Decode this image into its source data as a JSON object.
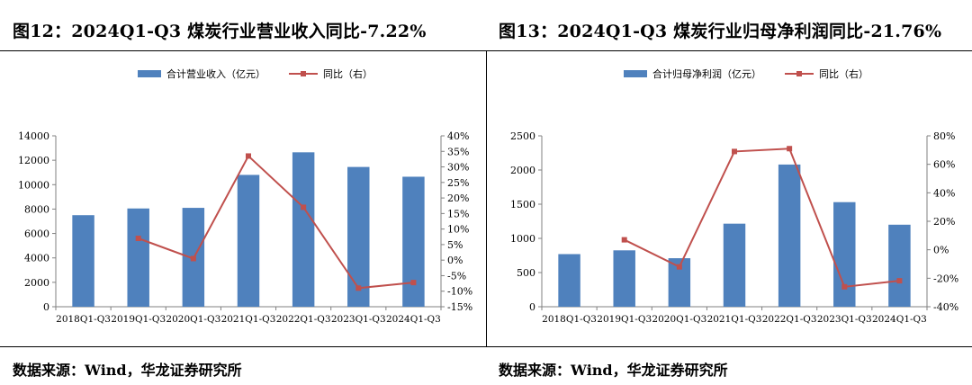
{
  "source_label": "数据来源：Wind，华龙证券研究所",
  "colors": {
    "bar": "#4f81bd",
    "line": "#c0504d",
    "axis": "#808080"
  },
  "chart_data": [
    {
      "type": "bar",
      "title": "图12：2024Q1-Q3 煤炭行业营业收入同比-7.22%",
      "categories": [
        "2018Q1-Q3",
        "2019Q1-Q3",
        "2020Q1-Q3",
        "2021Q1-Q3",
        "2022Q1-Q3",
        "2023Q1-Q3",
        "2024Q1-Q3"
      ],
      "series": [
        {
          "name": "合计营业收入（亿元）",
          "type": "bar",
          "axis": "left",
          "values": [
            7500,
            8050,
            8100,
            10800,
            12650,
            11450,
            10650
          ]
        },
        {
          "name": "同比（右）",
          "type": "line",
          "axis": "right",
          "values": [
            null,
            7,
            0.5,
            33.5,
            17,
            -9,
            -7.22
          ]
        }
      ],
      "ylim": [
        0,
        14000
      ],
      "yticks": [
        0,
        2000,
        4000,
        6000,
        8000,
        10000,
        12000,
        14000
      ],
      "ylim_right": [
        -15,
        40
      ],
      "yticks_right": [
        "-15%",
        "-10%",
        "-5%",
        "0%",
        "5%",
        "10%",
        "15%",
        "20%",
        "25%",
        "30%",
        "35%",
        "40%"
      ],
      "legend": "top-center",
      "grid": false
    },
    {
      "type": "bar",
      "title": "图13：2024Q1-Q3 煤炭行业归母净利润同比-21.76%",
      "categories": [
        "2018Q1-Q3",
        "2019Q1-Q3",
        "2020Q1-Q3",
        "2021Q1-Q3",
        "2022Q1-Q3",
        "2023Q1-Q3",
        "2024Q1-Q3"
      ],
      "series": [
        {
          "name": "合计归母净利润（亿元）",
          "type": "bar",
          "axis": "left",
          "values": [
            770,
            825,
            710,
            1215,
            2080,
            1530,
            1200
          ]
        },
        {
          "name": "同比（右）",
          "type": "line",
          "axis": "right",
          "values": [
            null,
            7,
            -12,
            69,
            71,
            -26,
            -21.76
          ]
        }
      ],
      "ylim": [
        0,
        2500
      ],
      "yticks": [
        0,
        500,
        1000,
        1500,
        2000,
        2500
      ],
      "ylim_right": [
        -40,
        80
      ],
      "yticks_right": [
        "-40%",
        "-20%",
        "0%",
        "20%",
        "40%",
        "60%",
        "80%"
      ],
      "legend": "top-center",
      "grid": false
    }
  ]
}
